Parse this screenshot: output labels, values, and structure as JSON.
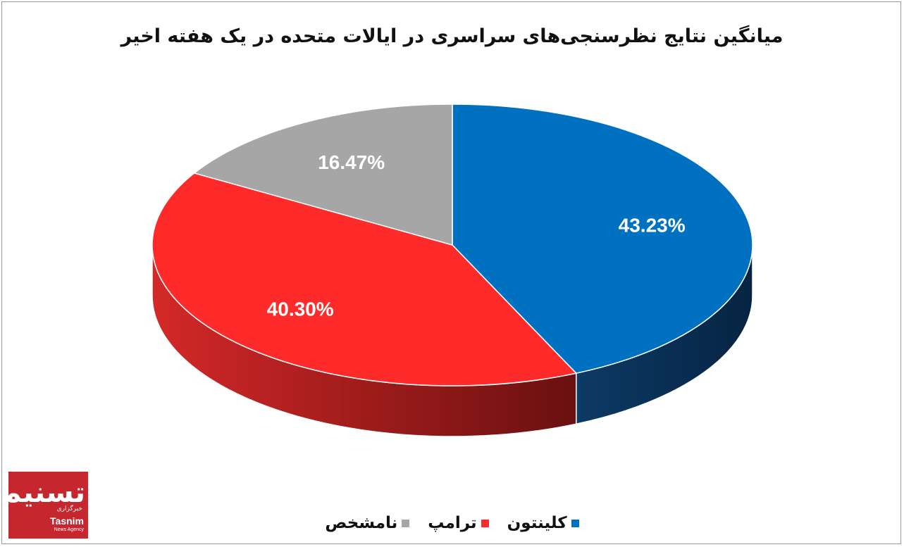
{
  "chart_data": {
    "type": "pie",
    "title": "میانگین نتایج نظرسنجی‌های سراسری در ایالات متحده در یک هفته اخیر",
    "categories": [
      "کلینتون",
      "ترامپ",
      "نامشخص"
    ],
    "values": [
      43.23,
      40.3,
      16.47
    ],
    "labels": [
      "43.23%",
      "40.30%",
      "16.47%"
    ],
    "colors": [
      "#0070c0",
      "#ff2b2b",
      "#a6a6a6"
    ],
    "side_colors": [
      "#0c3157",
      "#9e1c1c",
      "#6d6d6d"
    ],
    "style": "3d",
    "legend_position": "bottom"
  },
  "logo": {
    "script": "تسنیم",
    "fa": "خبرگزاری",
    "en": "Tasnim",
    "sub": "News Agency"
  }
}
